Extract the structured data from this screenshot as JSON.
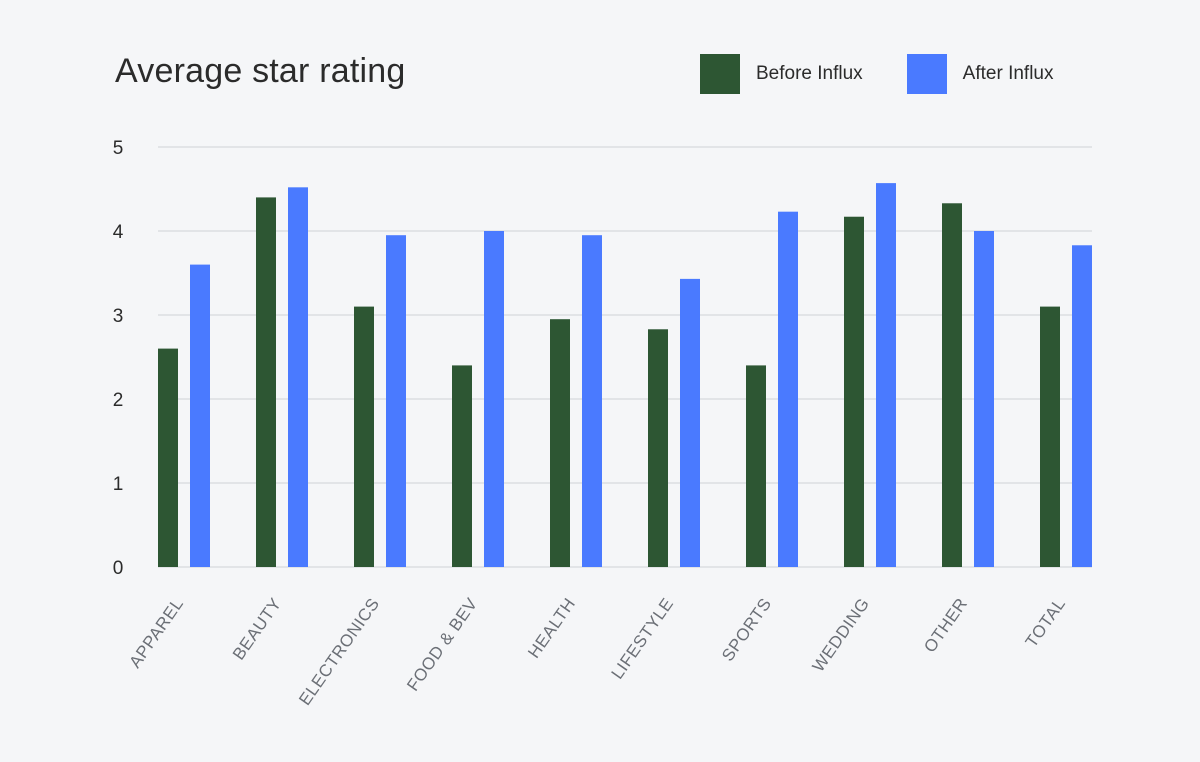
{
  "chart_data": {
    "type": "bar",
    "title": "Average star rating",
    "xlabel": "",
    "ylabel": "",
    "ylim": [
      0,
      5
    ],
    "yticks": [
      0,
      1,
      2,
      3,
      4,
      5
    ],
    "grid": true,
    "legend_position": "top-right",
    "categories": [
      "APPAREL",
      "BEAUTY",
      "ELECTRONICS",
      "FOOD & BEV",
      "HEALTH",
      "LIFESTYLE",
      "SPORTS",
      "WEDDING",
      "OTHER",
      "TOTAL"
    ],
    "series": [
      {
        "name": "Before Influx",
        "color": "#2d5633",
        "values": [
          2.6,
          4.4,
          3.1,
          2.4,
          2.95,
          2.83,
          2.4,
          4.17,
          4.33,
          3.1
        ]
      },
      {
        "name": "After Influx",
        "color": "#4a7aff",
        "values": [
          3.6,
          4.52,
          3.95,
          4.0,
          3.95,
          3.43,
          4.23,
          4.57,
          4.0,
          3.83
        ]
      }
    ]
  }
}
